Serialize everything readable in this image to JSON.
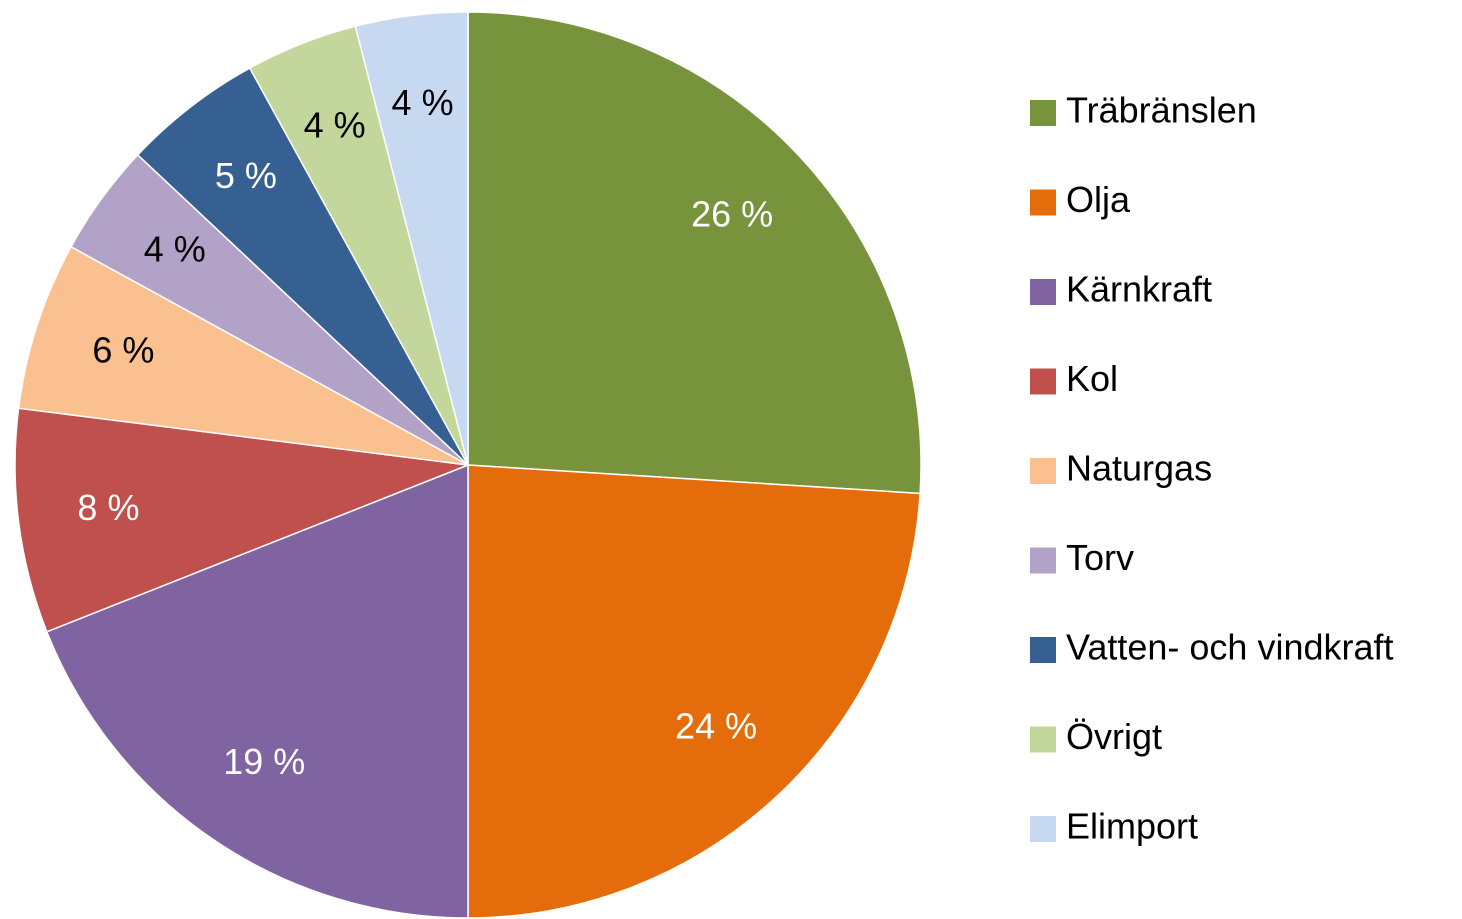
{
  "chart_data": {
    "type": "pie",
    "categories": [
      "Träbränslen",
      "Olja",
      "Kärnkraft",
      "Kol",
      "Naturgas",
      "Torv",
      "Vatten- och vindkraft",
      "Övrigt",
      "Elimport"
    ],
    "values": [
      26,
      24,
      19,
      8,
      6,
      4,
      5,
      4,
      4
    ],
    "value_labels": [
      "26 %",
      "24 %",
      "19 %",
      "8 %",
      "6 %",
      "4 %",
      "5 %",
      "4 %",
      "4 %"
    ],
    "colors": [
      "#77933c",
      "#e46c0a",
      "#8064a2",
      "#c0504d",
      "#fac090",
      "#b3a2c7",
      "#376092",
      "#c3d69b",
      "#c6d9f1"
    ],
    "label_colors": [
      "#ffffff",
      "#ffffff",
      "#ffffff",
      "#ffffff",
      "#000000",
      "#000000",
      "#ffffff",
      "#000000",
      "#000000"
    ],
    "legend": "right"
  }
}
